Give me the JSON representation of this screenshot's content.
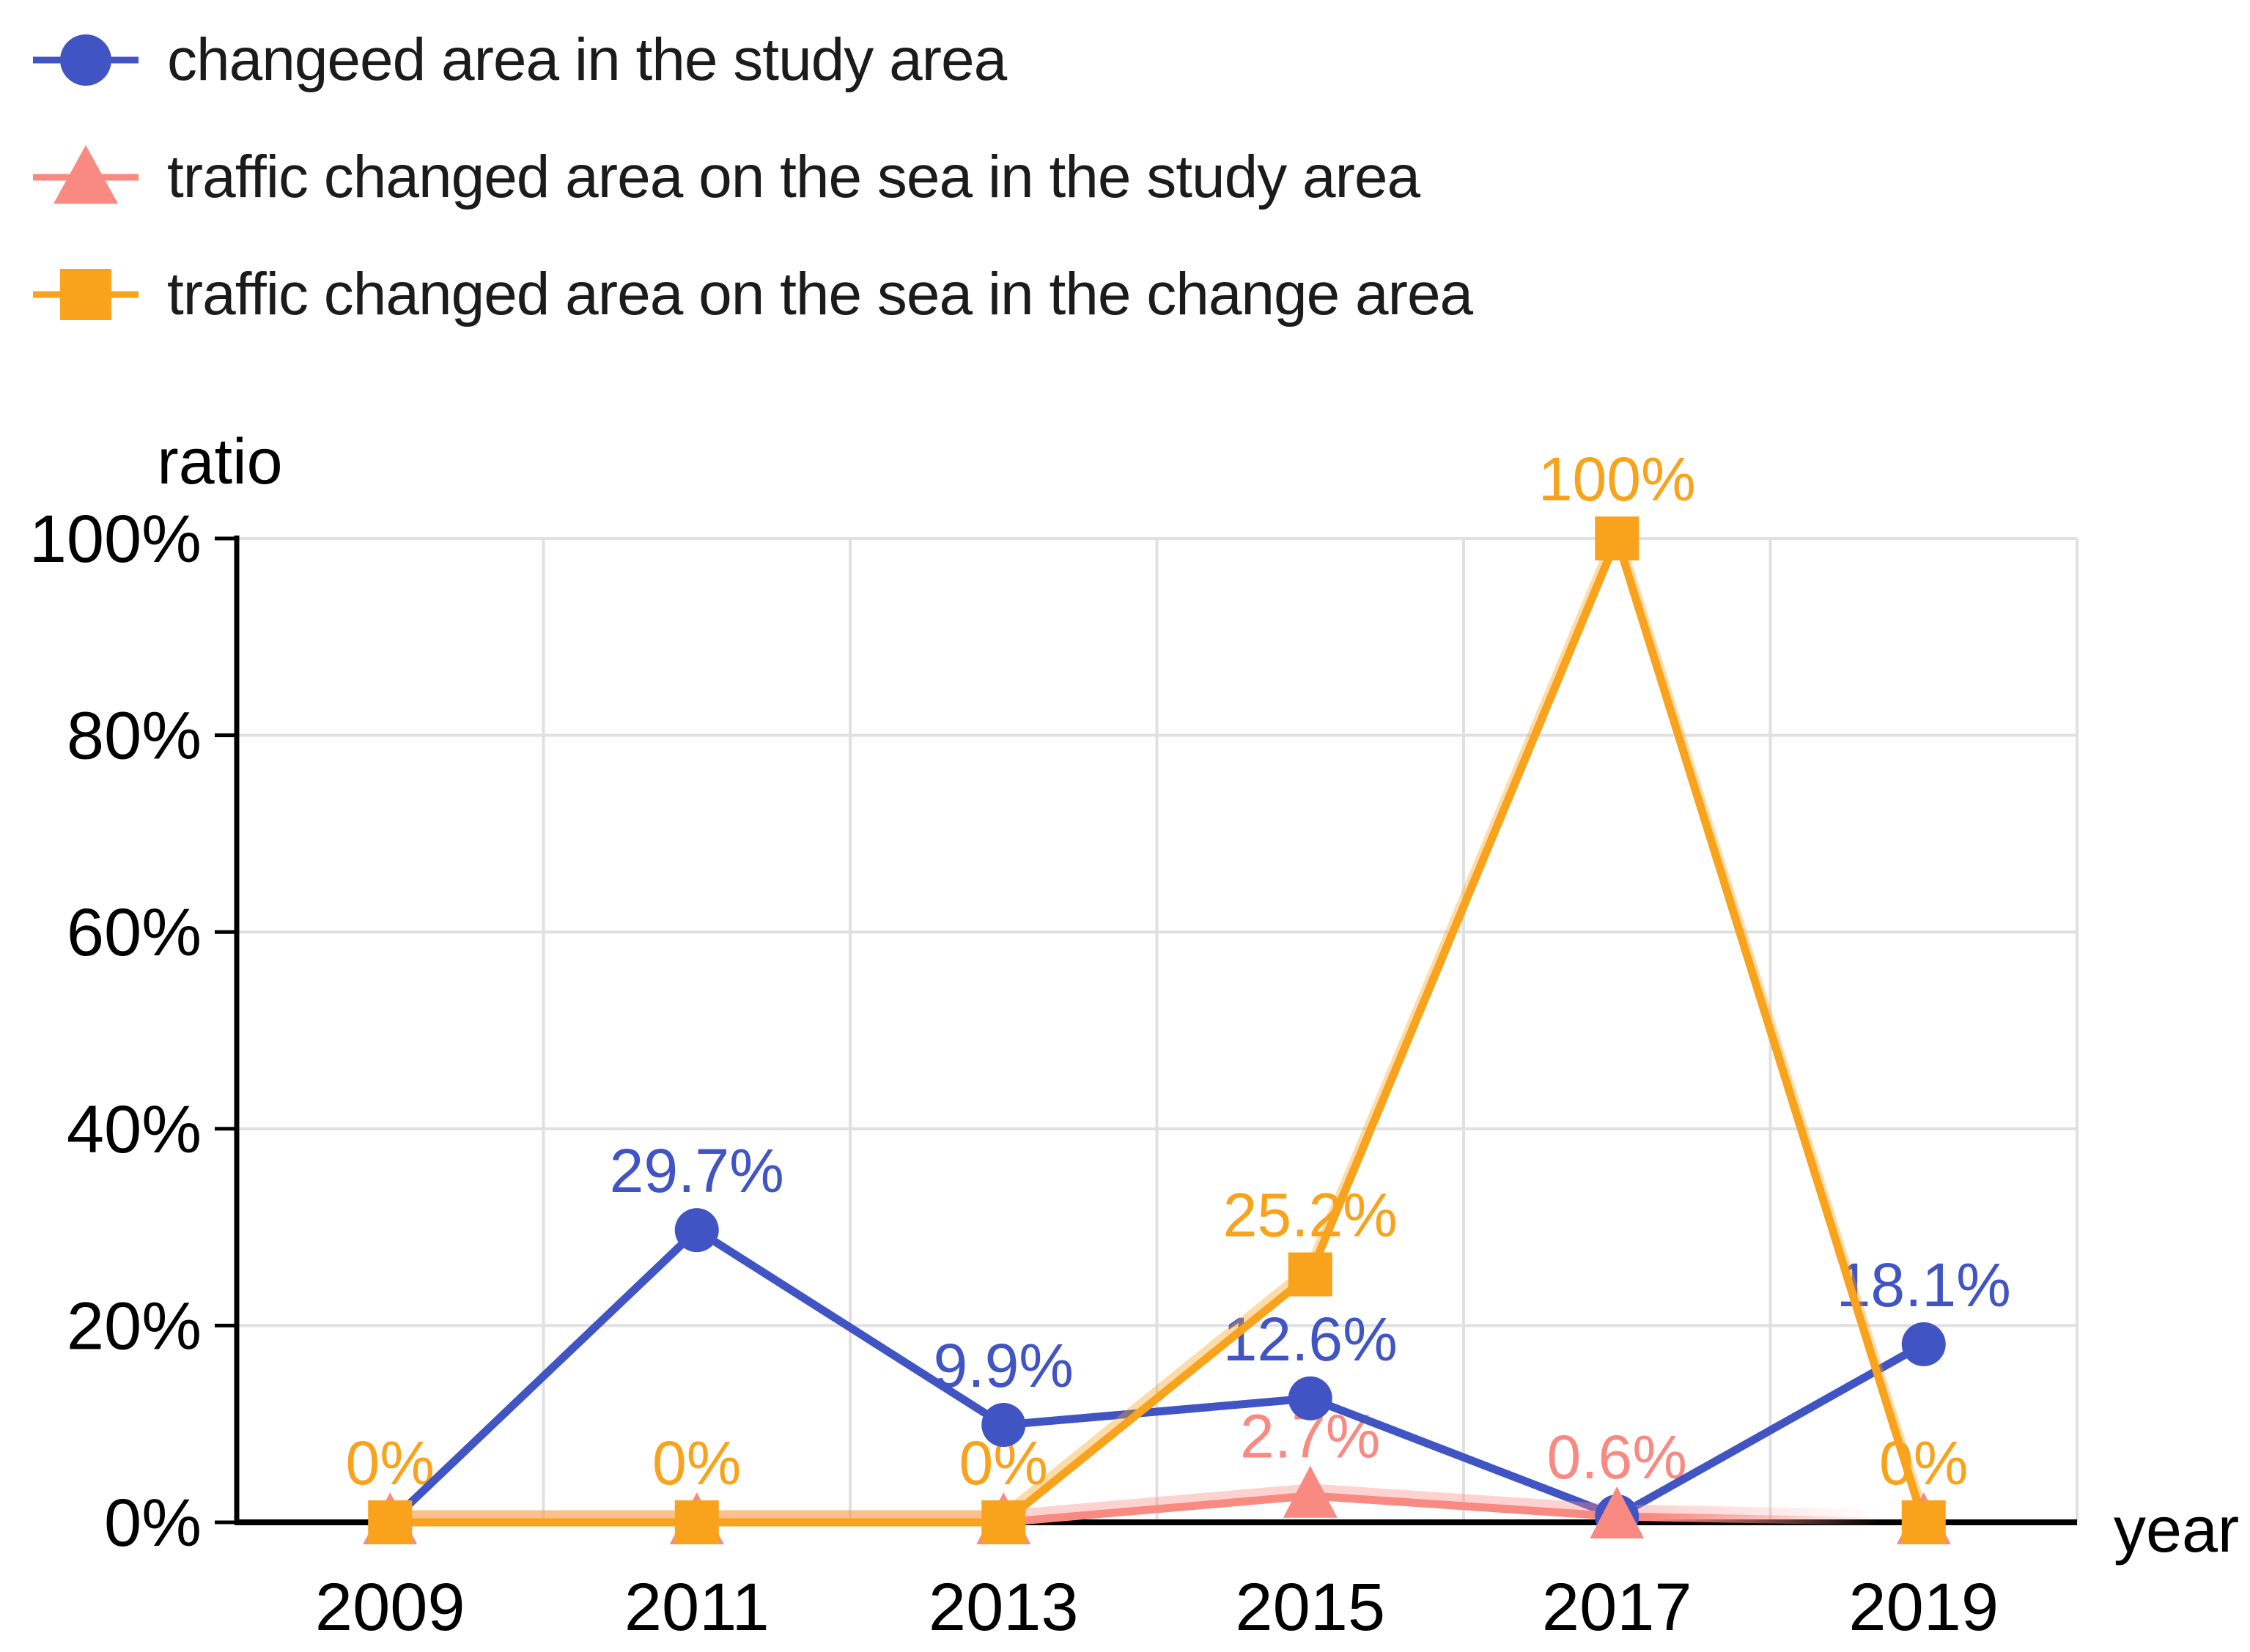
{
  "legend": {
    "items": [
      {
        "label": "changeed area in the study area",
        "marker": "circle",
        "color": "#4154C4"
      },
      {
        "label": "traffic changed area on the sea in the study area",
        "marker": "triangle",
        "color": "#F98A82"
      },
      {
        "label": "traffic changed area on the sea in the change area",
        "marker": "square",
        "color": "#F9A21C"
      }
    ]
  },
  "chart_data": {
    "type": "line",
    "title": "",
    "xlabel": "year",
    "ylabel": "ratio",
    "categories": [
      "2009",
      "2011",
      "2013",
      "2015",
      "2017",
      "2019"
    ],
    "y_ticks": [
      "0%",
      "20%",
      "40%",
      "60%",
      "80%",
      "100%"
    ],
    "ylim": [
      0,
      100
    ],
    "grid": true,
    "legend_position": "top-left",
    "axis_color": "#000000",
    "gridline_color": "#e0e0e0",
    "tick_label_color": "#000000",
    "series": [
      {
        "name": "changeed area in the study area",
        "color": "#4154C4",
        "marker": "circle",
        "values": [
          0,
          29.7,
          9.9,
          12.6,
          0.6,
          18.1
        ],
        "data_labels": [
          "",
          "29.7%",
          "9.9%",
          "12.6%",
          "",
          "18.1%"
        ]
      },
      {
        "name": "traffic changed area on the sea in the study area",
        "color": "#F98A82",
        "marker": "triangle",
        "values": [
          0,
          0,
          0,
          2.7,
          0.6,
          0
        ],
        "data_labels": [
          "",
          "",
          "",
          "2.7%",
          "0.6%",
          ""
        ]
      },
      {
        "name": "traffic changed area on the sea in the change area",
        "color": "#F9A21C",
        "marker": "square",
        "values": [
          0,
          0,
          0,
          25.2,
          100,
          0
        ],
        "data_labels": [
          "0%",
          "0%",
          "0%",
          "25.2%",
          "100%",
          "0%"
        ]
      }
    ]
  }
}
